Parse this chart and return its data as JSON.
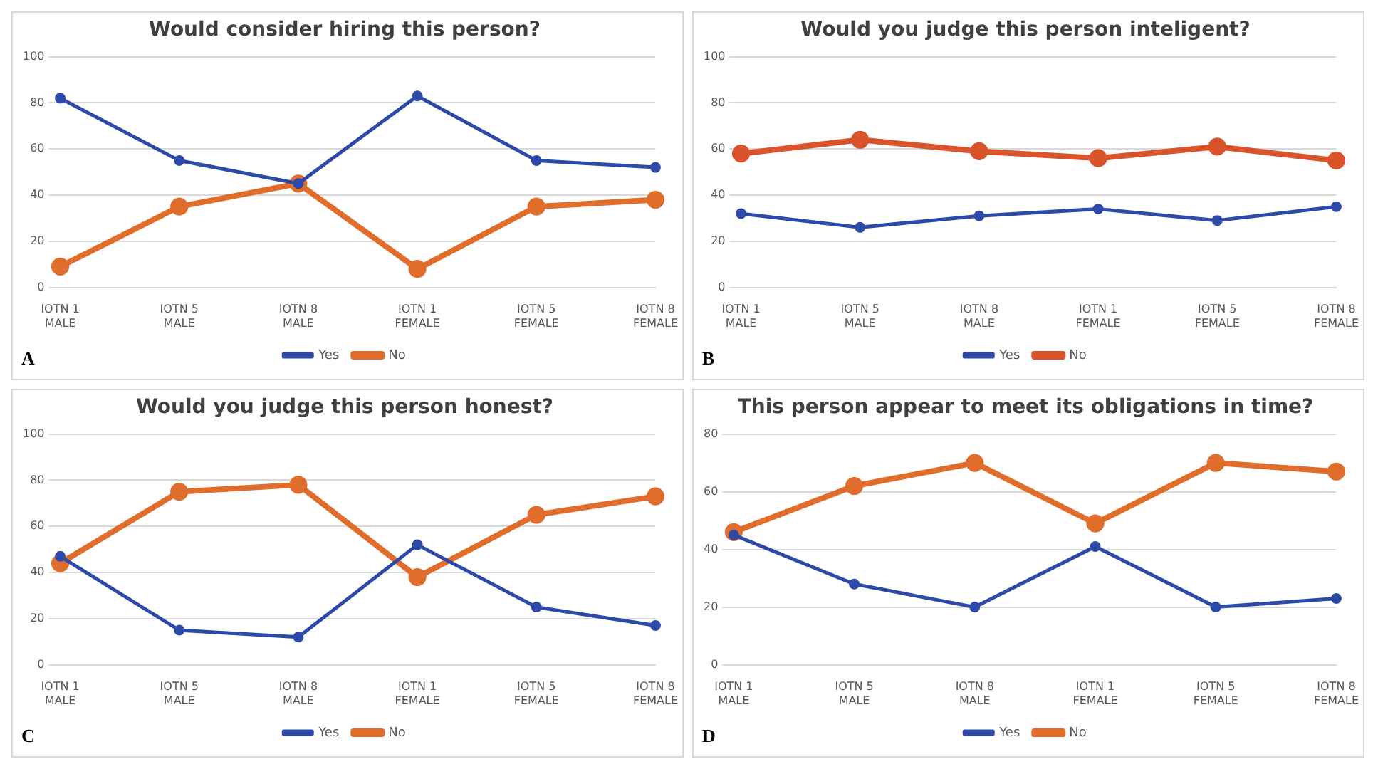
{
  "chart_data": [
    {
      "type": "line",
      "title": "Would consider hiring this person?",
      "categories": [
        "IOTN 1 MALE",
        "IOTN 5 MALE",
        "IOTN 8 MALE",
        "IOTN 1 FEMALE",
        "IOTN 5 FEMALE",
        "IOTN 8 FEMALE"
      ],
      "series": [
        {
          "name": "Yes",
          "color": "#2e4aa8",
          "values": [
            82,
            55,
            45,
            83,
            55,
            52
          ]
        },
        {
          "name": "No",
          "color": "#e06d2b",
          "values": [
            9,
            35,
            45,
            8,
            35,
            38
          ]
        }
      ],
      "ylim": [
        0,
        100
      ],
      "yticks": [
        0,
        20,
        40,
        60,
        80,
        100
      ],
      "grid": "y",
      "legend": "bottom",
      "marker": "circle",
      "annotations": [
        "A"
      ]
    },
    {
      "type": "line",
      "title": "Would you judge this person inteligent?",
      "categories": [
        "IOTN 1 MALE",
        "IOTN 5 MALE",
        "IOTN 8 MALE",
        "IOTN 1 FEMALE",
        "IOTN 5 FEMALE",
        "IOTN 8 FEMALE"
      ],
      "series": [
        {
          "name": "Yes",
          "color": "#2e4aa8",
          "values": [
            32,
            26,
            31,
            34,
            29,
            35
          ]
        },
        {
          "name": "No",
          "color": "#d9532b",
          "values": [
            58,
            64,
            59,
            56,
            61,
            55
          ]
        }
      ],
      "ylim": [
        0,
        100
      ],
      "yticks": [
        0,
        20,
        40,
        60,
        80,
        100
      ],
      "grid": "y",
      "legend": "bottom",
      "marker": "circle",
      "annotations": [
        "B"
      ]
    },
    {
      "type": "line",
      "title": "Would you judge this person honest?",
      "categories": [
        "IOTN 1 MALE",
        "IOTN 5 MALE",
        "IOTN 8 MALE",
        "IOTN 1 FEMALE",
        "IOTN 5 FEMALE",
        "IOTN 8 FEMALE"
      ],
      "series": [
        {
          "name": "Yes",
          "color": "#2e4aa8",
          "values": [
            47,
            15,
            12,
            52,
            25,
            17
          ]
        },
        {
          "name": "No",
          "color": "#e06d2b",
          "values": [
            44,
            75,
            78,
            38,
            65,
            73
          ]
        }
      ],
      "ylim": [
        0,
        100
      ],
      "yticks": [
        0,
        20,
        40,
        60,
        80,
        100
      ],
      "grid": "y",
      "legend": "bottom",
      "marker": "circle",
      "annotations": [
        "C"
      ]
    },
    {
      "type": "line",
      "title": "This person appear to meet its obligations in time?",
      "categories": [
        "IOTN 1 MALE",
        "IOTN 5 MALE",
        "IOTN 8 MALE",
        "IOTN 1 FEMALE",
        "IOTN 5 FEMALE",
        "IOTN 8 FEMALE"
      ],
      "series": [
        {
          "name": "Yes",
          "color": "#2e4aa8",
          "values": [
            45,
            28,
            20,
            41,
            20,
            23
          ]
        },
        {
          "name": "No",
          "color": "#e06d2b",
          "values": [
            46,
            62,
            70,
            49,
            70,
            67
          ]
        }
      ],
      "ylim": [
        0,
        80
      ],
      "yticks": [
        0,
        20,
        40,
        60,
        80
      ],
      "grid": "y",
      "legend": "bottom",
      "marker": "circle",
      "annotations": [
        "D"
      ]
    }
  ]
}
